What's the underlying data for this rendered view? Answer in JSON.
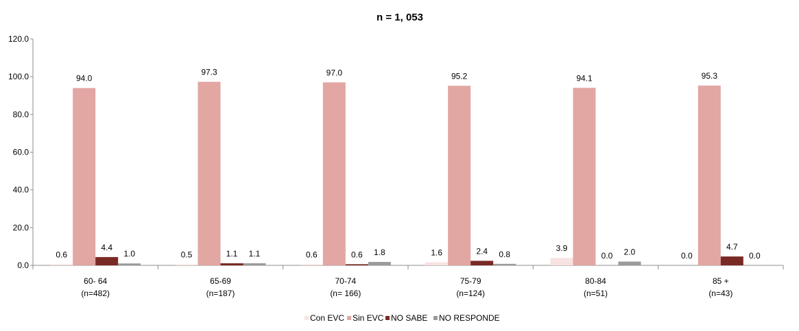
{
  "chart_data": {
    "type": "bar",
    "title": "n = 1, 053",
    "xlabel": "",
    "ylabel": "",
    "ylim": [
      0,
      120
    ],
    "yticks": [
      "0.0",
      "20.0",
      "40.0",
      "60.0",
      "80.0",
      "100.0",
      "120.0"
    ],
    "grid": false,
    "legend_position": "bottom",
    "categories": [
      [
        "60- 64",
        "(n=482)"
      ],
      [
        "65-69",
        "(n=187)"
      ],
      [
        "70-74",
        "(n= 166)"
      ],
      [
        "75-79",
        "(n=124)"
      ],
      [
        "80-84",
        "(n=51)"
      ],
      [
        "85 +",
        "(n=43)"
      ]
    ],
    "series": [
      {
        "name": "Con EVC",
        "color": "#f7e3e1",
        "values": [
          0.6,
          0.5,
          0.6,
          1.6,
          3.9,
          0.0
        ],
        "labels": [
          "0.6",
          "0.5",
          "0.6",
          "1.6",
          "3.9",
          "0.0"
        ]
      },
      {
        "name": "Sin EVC",
        "color": "#e2a6a3",
        "values": [
          94.0,
          97.3,
          97.0,
          95.2,
          94.1,
          95.3
        ],
        "labels": [
          "94.0",
          "97.3",
          "97.0",
          "95.2",
          "94.1",
          "95.3"
        ]
      },
      {
        "name": "NO SABE",
        "color": "#7a2a24",
        "values": [
          4.4,
          1.1,
          0.6,
          2.4,
          0.0,
          4.7
        ],
        "labels": [
          "4.4",
          "1.1",
          "0.6",
          "2.4",
          "0.0",
          "4.7"
        ]
      },
      {
        "name": "NO RESPONDE",
        "color": "#9a9a9a",
        "values": [
          1.0,
          1.1,
          1.8,
          0.8,
          2.0,
          0.0
        ],
        "labels": [
          "1.0",
          "1.1",
          "1.8",
          "0.8",
          "2.0",
          "0.0"
        ]
      }
    ]
  }
}
